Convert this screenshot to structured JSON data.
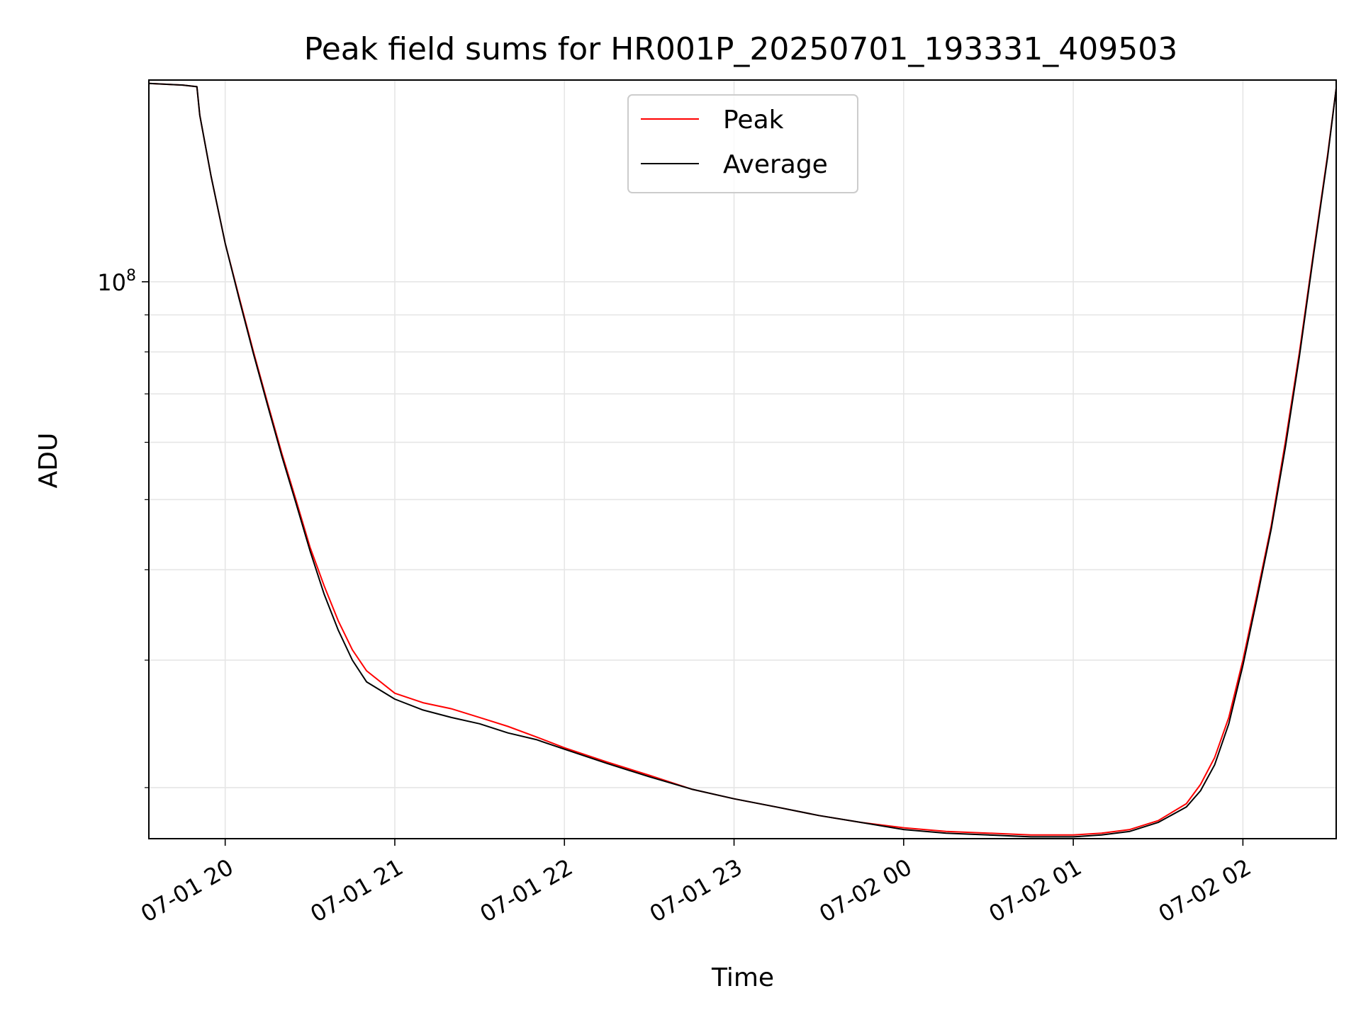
{
  "chart_data": {
    "type": "line",
    "title": "Peak field sums for HR001P_20250701_193331_409503",
    "xlabel": "Time",
    "ylabel": "ADU",
    "y_scale": "log",
    "ylim": [
      17000000,
      190000000
    ],
    "x_range": [
      "2025-07-01 19:33",
      "2025-07-02 02:33"
    ],
    "x_ticks": [
      "07-01 20",
      "07-01 21",
      "07-01 22",
      "07-01 23",
      "07-02 00",
      "07-02 01",
      "07-02 02"
    ],
    "y_ticks": [
      "10^8"
    ],
    "grid": true,
    "legend_position": "upper center",
    "series": [
      {
        "name": "Peak",
        "color": "#ff0000",
        "x": [
          "2025-07-01 19:33",
          "2025-07-01 19:45",
          "2025-07-01 19:50",
          "2025-07-01 19:51",
          "2025-07-01 19:55",
          "2025-07-01 20:00",
          "2025-07-01 20:05",
          "2025-07-01 20:10",
          "2025-07-01 20:15",
          "2025-07-01 20:20",
          "2025-07-01 20:25",
          "2025-07-01 20:30",
          "2025-07-01 20:35",
          "2025-07-01 20:40",
          "2025-07-01 20:45",
          "2025-07-01 20:50",
          "2025-07-01 21:00",
          "2025-07-01 21:10",
          "2025-07-01 21:20",
          "2025-07-01 21:30",
          "2025-07-01 21:40",
          "2025-07-01 21:50",
          "2025-07-01 22:00",
          "2025-07-01 22:15",
          "2025-07-01 22:30",
          "2025-07-01 22:45",
          "2025-07-01 23:00",
          "2025-07-01 23:15",
          "2025-07-01 23:30",
          "2025-07-01 23:45",
          "2025-07-02 00:00",
          "2025-07-02 00:15",
          "2025-07-02 00:30",
          "2025-07-02 00:45",
          "2025-07-02 01:00",
          "2025-07-02 01:10",
          "2025-07-02 01:20",
          "2025-07-02 01:30",
          "2025-07-02 01:40",
          "2025-07-02 01:45",
          "2025-07-02 01:50",
          "2025-07-02 01:55",
          "2025-07-02 02:00",
          "2025-07-02 02:05",
          "2025-07-02 02:10",
          "2025-07-02 02:15",
          "2025-07-02 02:20",
          "2025-07-02 02:25",
          "2025-07-02 02:30",
          "2025-07-02 02:33"
        ],
        "values": [
          188000000,
          187000000,
          186000000,
          170000000,
          140000000,
          113000000,
          95000000,
          80000000,
          68000000,
          58000000,
          50000000,
          43000000,
          38000000,
          34000000,
          31000000,
          29000000,
          27000000,
          26200000,
          25700000,
          25000000,
          24300000,
          23500000,
          22700000,
          21700000,
          20800000,
          19900000,
          19300000,
          18800000,
          18300000,
          17900000,
          17600000,
          17400000,
          17300000,
          17200000,
          17200000,
          17300000,
          17500000,
          18000000,
          19000000,
          20200000,
          22000000,
          25000000,
          30000000,
          37000000,
          46000000,
          60000000,
          80000000,
          110000000,
          150000000,
          185000000
        ]
      },
      {
        "name": "Average",
        "color": "#000000",
        "x": [
          "2025-07-01 19:33",
          "2025-07-01 19:45",
          "2025-07-01 19:50",
          "2025-07-01 19:51",
          "2025-07-01 19:55",
          "2025-07-01 20:00",
          "2025-07-01 20:05",
          "2025-07-01 20:10",
          "2025-07-01 20:15",
          "2025-07-01 20:20",
          "2025-07-01 20:25",
          "2025-07-01 20:30",
          "2025-07-01 20:35",
          "2025-07-01 20:40",
          "2025-07-01 20:45",
          "2025-07-01 20:50",
          "2025-07-01 21:00",
          "2025-07-01 21:10",
          "2025-07-01 21:20",
          "2025-07-01 21:30",
          "2025-07-01 21:40",
          "2025-07-01 21:50",
          "2025-07-01 22:00",
          "2025-07-01 22:15",
          "2025-07-01 22:30",
          "2025-07-01 22:45",
          "2025-07-01 23:00",
          "2025-07-01 23:15",
          "2025-07-01 23:30",
          "2025-07-01 23:45",
          "2025-07-02 00:00",
          "2025-07-02 00:15",
          "2025-07-02 00:30",
          "2025-07-02 00:45",
          "2025-07-02 01:00",
          "2025-07-02 01:10",
          "2025-07-02 01:20",
          "2025-07-02 01:30",
          "2025-07-02 01:40",
          "2025-07-02 01:45",
          "2025-07-02 01:50",
          "2025-07-02 01:55",
          "2025-07-02 02:00",
          "2025-07-02 02:05",
          "2025-07-02 02:10",
          "2025-07-02 02:15",
          "2025-07-02 02:20",
          "2025-07-02 02:25",
          "2025-07-02 02:30",
          "2025-07-02 02:33"
        ],
        "values": [
          188000000,
          187000000,
          186000000,
          170000000,
          140000000,
          113000000,
          94500000,
          79500000,
          67500000,
          57500000,
          49500000,
          42500000,
          37000000,
          33000000,
          30000000,
          28000000,
          26500000,
          25600000,
          25000000,
          24500000,
          23800000,
          23300000,
          22600000,
          21600000,
          20700000,
          19900000,
          19300000,
          18800000,
          18300000,
          17900000,
          17500000,
          17300000,
          17200000,
          17100000,
          17100000,
          17200000,
          17400000,
          17900000,
          18800000,
          19800000,
          21500000,
          24500000,
          29500000,
          36500000,
          45500000,
          59000000,
          79000000,
          109000000,
          149000000,
          185000000
        ]
      }
    ]
  }
}
